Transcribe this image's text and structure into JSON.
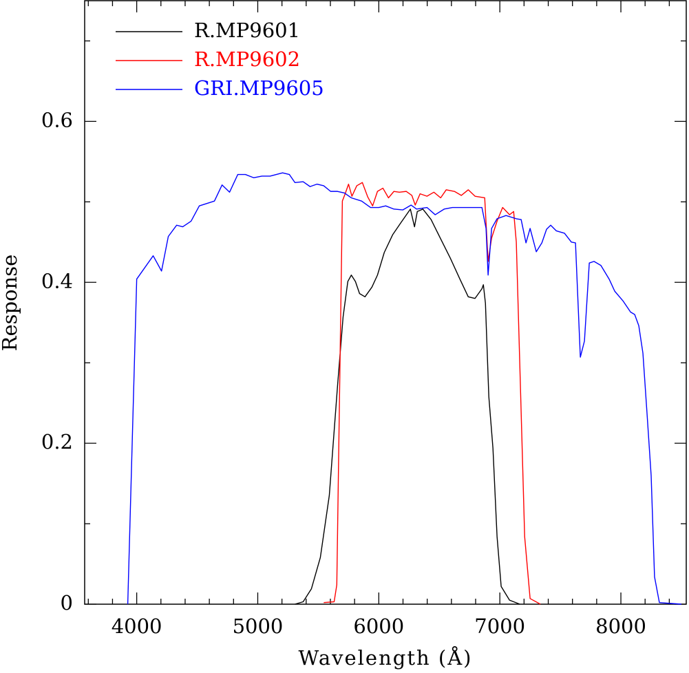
{
  "chart_data": {
    "type": "line",
    "xlabel": "Wavelength (Å)",
    "ylabel": "Response",
    "xlim": [
      3570,
      8540
    ],
    "ylim": [
      0,
      0.75
    ],
    "xticks": [
      4000,
      5000,
      6000,
      7000,
      8000
    ],
    "yticks": [
      0,
      0.2,
      0.4,
      0.6
    ],
    "xminorticks": [
      3600,
      3800,
      4200,
      4400,
      4600,
      4800,
      5200,
      5400,
      5600,
      5800,
      6200,
      6400,
      6600,
      6800,
      7200,
      7400,
      7600,
      7800,
      8200,
      8400
    ],
    "yminorticks": [
      0.1,
      0.3,
      0.5,
      0.7
    ],
    "legend": "upper left",
    "series": [
      {
        "name": "R.MP9601",
        "color": "#000000",
        "x": [
          5307,
          5375,
          5443,
          5517,
          5591,
          5659,
          5705,
          5744,
          5773,
          5807,
          5841,
          5886,
          5943,
          5989,
          6045,
          6114,
          6182,
          6261,
          6295,
          6318,
          6364,
          6432,
          6511,
          6591,
          6670,
          6739,
          6795,
          6852,
          6864,
          6881,
          6909,
          6943,
          6977,
          7011,
          7080,
          7165
        ],
        "values": [
          0,
          0.003,
          0.019,
          0.058,
          0.135,
          0.271,
          0.357,
          0.401,
          0.409,
          0.401,
          0.386,
          0.382,
          0.394,
          0.409,
          0.437,
          0.459,
          0.474,
          0.491,
          0.469,
          0.488,
          0.491,
          0.478,
          0.454,
          0.43,
          0.404,
          0.382,
          0.38,
          0.392,
          0.397,
          0.374,
          0.258,
          0.194,
          0.084,
          0.022,
          0.005,
          0
        ]
      },
      {
        "name": "R.MP9602",
        "color": "#ff0000",
        "x": [
          5545,
          5631,
          5653,
          5676,
          5699,
          5722,
          5750,
          5778,
          5818,
          5864,
          5909,
          5949,
          5989,
          6034,
          6080,
          6125,
          6170,
          6227,
          6273,
          6301,
          6341,
          6398,
          6455,
          6511,
          6557,
          6625,
          6682,
          6739,
          6795,
          6875,
          6903,
          6932,
          6977,
          7023,
          7080,
          7114,
          7136,
          7170,
          7205,
          7250,
          7335
        ],
        "values": [
          0.002,
          0.003,
          0.024,
          0.263,
          0.501,
          0.51,
          0.522,
          0.507,
          0.52,
          0.524,
          0.506,
          0.495,
          0.513,
          0.517,
          0.505,
          0.513,
          0.512,
          0.513,
          0.508,
          0.496,
          0.51,
          0.507,
          0.512,
          0.505,
          0.515,
          0.513,
          0.508,
          0.515,
          0.507,
          0.505,
          0.426,
          0.455,
          0.476,
          0.493,
          0.484,
          0.488,
          0.45,
          0.271,
          0.084,
          0.007,
          0
        ]
      },
      {
        "name": "GRI.MP9605",
        "color": "#0000ff",
        "x": [
          3926,
          4000,
          4136,
          4205,
          4261,
          4330,
          4380,
          4449,
          4517,
          4642,
          4705,
          4767,
          4835,
          4898,
          4966,
          5034,
          5102,
          5205,
          5261,
          5307,
          5375,
          5432,
          5489,
          5545,
          5602,
          5659,
          5716,
          5773,
          5858,
          5932,
          6000,
          6057,
          6125,
          6199,
          6267,
          6312,
          6398,
          6466,
          6540,
          6608,
          6682,
          6750,
          6852,
          6886,
          6903,
          6932,
          6977,
          7051,
          7136,
          7176,
          7216,
          7250,
          7301,
          7347,
          7386,
          7420,
          7466,
          7534,
          7591,
          7625,
          7665,
          7699,
          7739,
          7778,
          7835,
          7903,
          7949,
          8017,
          8080,
          8114,
          8148,
          8182,
          8216,
          8250,
          8278,
          8318,
          8500
        ],
        "values": [
          0,
          0.404,
          0.433,
          0.414,
          0.457,
          0.471,
          0.469,
          0.476,
          0.495,
          0.501,
          0.521,
          0.512,
          0.534,
          0.534,
          0.53,
          0.532,
          0.532,
          0.536,
          0.534,
          0.524,
          0.525,
          0.519,
          0.522,
          0.52,
          0.513,
          0.513,
          0.511,
          0.505,
          0.501,
          0.493,
          0.493,
          0.495,
          0.491,
          0.49,
          0.496,
          0.491,
          0.493,
          0.484,
          0.491,
          0.493,
          0.493,
          0.493,
          0.493,
          0.467,
          0.409,
          0.467,
          0.479,
          0.483,
          0.479,
          0.478,
          0.449,
          0.467,
          0.438,
          0.449,
          0.466,
          0.471,
          0.464,
          0.461,
          0.45,
          0.449,
          0.307,
          0.327,
          0.424,
          0.426,
          0.421,
          0.404,
          0.389,
          0.377,
          0.363,
          0.36,
          0.346,
          0.312,
          0.237,
          0.16,
          0.034,
          0.002,
          0
        ]
      }
    ]
  }
}
